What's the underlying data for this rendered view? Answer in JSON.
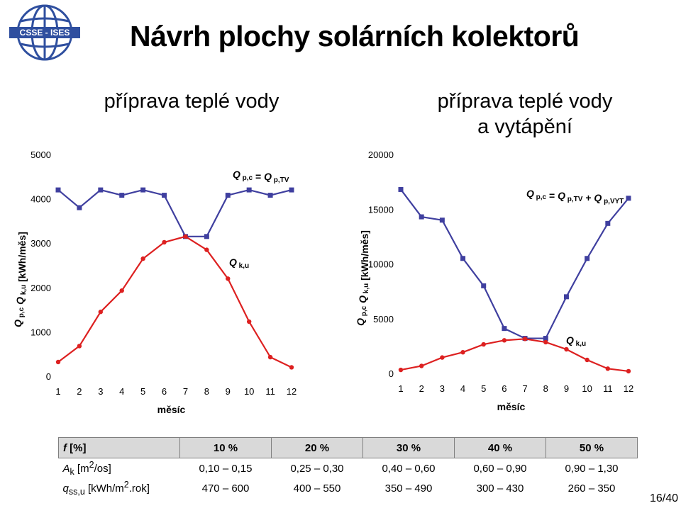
{
  "page": {
    "title": "Návrh plochy solárních kolektorů",
    "logo_text": "CSSE - ISES",
    "page_number": "16/40"
  },
  "charts_meta": [
    {
      "subtitle": [
        "příprava teplé vody"
      ],
      "yticks": [
        "0",
        "1000",
        "2000",
        "3000",
        "4000",
        "5000"
      ],
      "ylabel": "Q p,c  Q k,u [kWh/měs]",
      "xlabel": "měsíc",
      "annot_top": "Q p,c = Q p,TV",
      "annot_bottom": "Q k,u"
    },
    {
      "subtitle": [
        "příprava teplé vody",
        "a vytápění"
      ],
      "yticks": [
        "0",
        "5000",
        "10000",
        "15000",
        "20000"
      ],
      "ylabel": "Q p,c  Q k,u [kWh/měs]",
      "xlabel": "měsíc",
      "annot_top": "Q p,c = Q p,TV + Q p,VYT",
      "annot_bottom": "Q k,u"
    }
  ],
  "chart_data": [
    {
      "type": "line",
      "title": "příprava teplé vody",
      "xlabel": "měsíc",
      "ylabel": "Q p,c  Q k,u [kWh/měs]",
      "x": [
        1,
        2,
        3,
        4,
        5,
        6,
        7,
        8,
        9,
        10,
        11,
        12
      ],
      "xlim": [
        1,
        12
      ],
      "ylim": [
        0,
        5000
      ],
      "grid": false,
      "series": [
        {
          "name": "Q p,c = Q p,TV",
          "color": "#3f3f9f",
          "values": [
            4200,
            3800,
            4200,
            4080,
            4200,
            4080,
            3150,
            3150,
            4080,
            4200,
            4080,
            4200
          ]
        },
        {
          "name": "Q k,u",
          "color": "#dd2020",
          "values": [
            320,
            680,
            1450,
            1930,
            2650,
            3020,
            3150,
            2850,
            2200,
            1230,
            430,
            200
          ]
        }
      ]
    },
    {
      "type": "line",
      "title": "příprava teplé vody a vytápění",
      "xlabel": "měsíc",
      "ylabel": "Q p,c  Q k,u [kWh/měs]",
      "x": [
        1,
        2,
        3,
        4,
        5,
        6,
        7,
        8,
        9,
        10,
        11,
        12
      ],
      "xlim": [
        1,
        12
      ],
      "ylim": [
        0,
        20000
      ],
      "grid": false,
      "series": [
        {
          "name": "Q p,c = Q p,TV + Q p,VYT",
          "color": "#3f3f9f",
          "values": [
            16800,
            14300,
            14000,
            10500,
            8000,
            4100,
            3200,
            3200,
            7000,
            10500,
            13700,
            16000
          ]
        },
        {
          "name": "Q k,u",
          "color": "#dd2020",
          "values": [
            320,
            680,
            1450,
            1930,
            2650,
            3020,
            3150,
            2850,
            2200,
            1230,
            430,
            200
          ]
        }
      ]
    }
  ],
  "table": {
    "header": [
      "f [%]",
      "10 %",
      "20 %",
      "30 %",
      "40 %",
      "50 %"
    ],
    "rows": [
      [
        "A k [m2/os]",
        "0,10 – 0,15",
        "0,25 – 0,30",
        "0,40 – 0,60",
        "0,60 – 0,90",
        "0,90 – 1,30"
      ],
      [
        "q ss,u [kWh/m2.rok]",
        "470 – 600",
        "400 – 550",
        "350 – 490",
        "300 – 430",
        "260 – 350"
      ]
    ]
  }
}
